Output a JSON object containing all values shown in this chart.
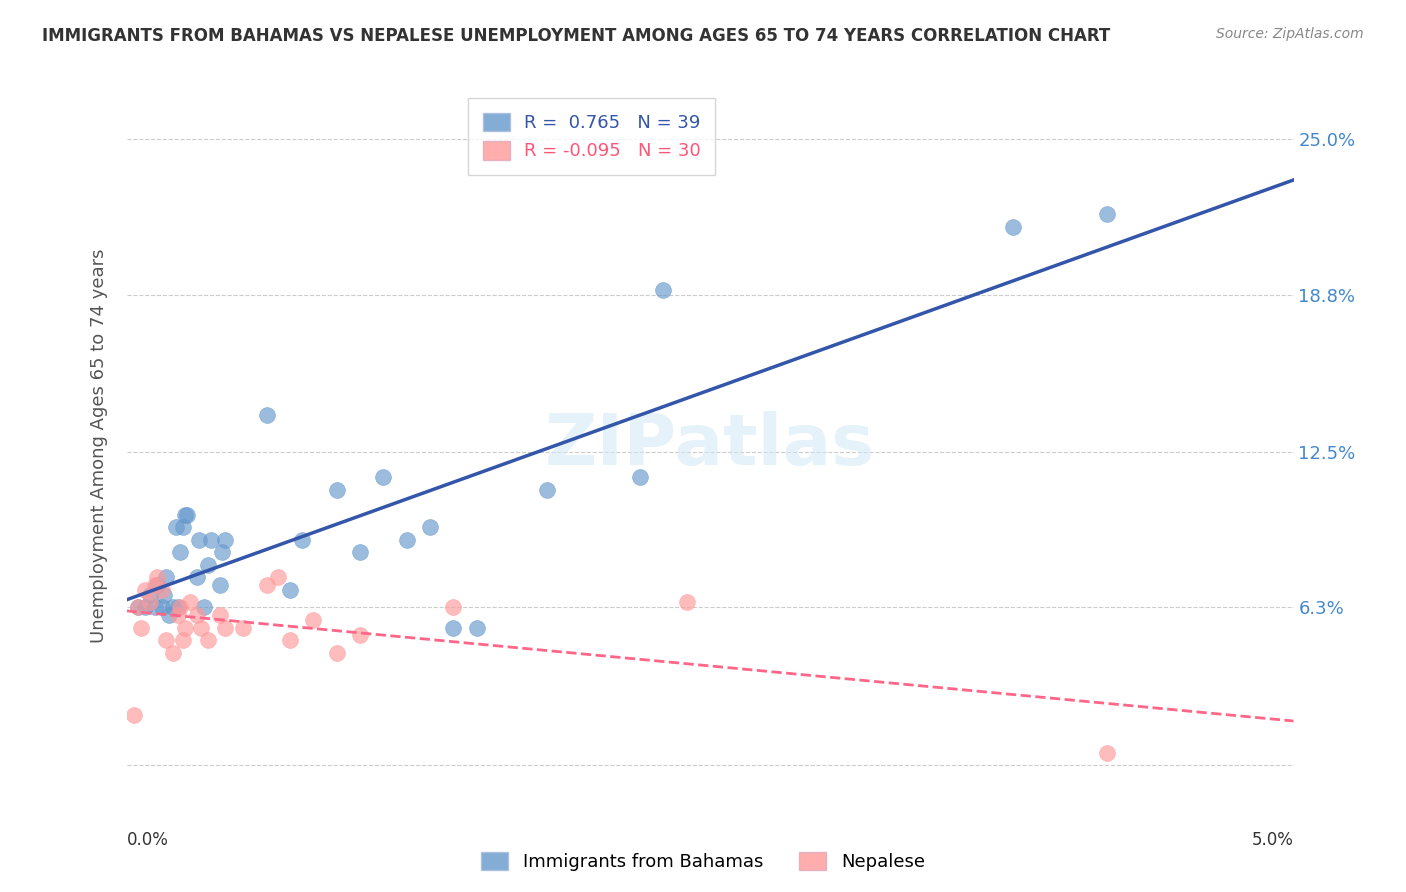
{
  "title": "IMMIGRANTS FROM BAHAMAS VS NEPALESE UNEMPLOYMENT AMONG AGES 65 TO 74 YEARS CORRELATION CHART",
  "source": "Source: ZipAtlas.com",
  "ylabel": "Unemployment Among Ages 65 to 74 years",
  "ytick_labels": [
    "",
    "6.3%",
    "12.5%",
    "18.8%",
    "25.0%"
  ],
  "ytick_values": [
    0,
    0.063,
    0.125,
    0.188,
    0.25
  ],
  "xlim": [
    0,
    0.05
  ],
  "ylim": [
    -0.015,
    0.27
  ],
  "watermark": "ZIPatlas",
  "legend_blue_label": "Immigrants from Bahamas",
  "legend_pink_label": "Nepalese",
  "R_blue": 0.765,
  "N_blue": 39,
  "R_pink": -0.095,
  "N_pink": 30,
  "blue_color": "#6699CC",
  "pink_color": "#FF9999",
  "blue_line_color": "#3355AA",
  "pink_line_color": "#FF6688",
  "blue_scatter_x": [
    0.0005,
    0.0008,
    0.001,
    0.0012,
    0.0013,
    0.0015,
    0.0016,
    0.0017,
    0.0018,
    0.002,
    0.0021,
    0.0022,
    0.0023,
    0.0024,
    0.0025,
    0.0026,
    0.003,
    0.0031,
    0.0033,
    0.0035,
    0.0036,
    0.004,
    0.0041,
    0.0042,
    0.006,
    0.007,
    0.0075,
    0.009,
    0.01,
    0.011,
    0.012,
    0.013,
    0.014,
    0.015,
    0.018,
    0.022,
    0.023,
    0.038,
    0.042
  ],
  "blue_scatter_y": [
    0.063,
    0.063,
    0.068,
    0.063,
    0.072,
    0.063,
    0.068,
    0.075,
    0.06,
    0.063,
    0.095,
    0.063,
    0.085,
    0.095,
    0.1,
    0.1,
    0.075,
    0.09,
    0.063,
    0.08,
    0.09,
    0.072,
    0.085,
    0.09,
    0.14,
    0.07,
    0.09,
    0.11,
    0.085,
    0.115,
    0.09,
    0.095,
    0.055,
    0.055,
    0.11,
    0.115,
    0.19,
    0.215,
    0.22
  ],
  "pink_scatter_x": [
    0.0003,
    0.0005,
    0.0006,
    0.0008,
    0.001,
    0.0012,
    0.0013,
    0.0015,
    0.0017,
    0.002,
    0.0022,
    0.0023,
    0.0024,
    0.0025,
    0.0027,
    0.003,
    0.0032,
    0.0035,
    0.004,
    0.0042,
    0.005,
    0.006,
    0.0065,
    0.007,
    0.008,
    0.009,
    0.01,
    0.014,
    0.024,
    0.042
  ],
  "pink_scatter_y": [
    0.02,
    0.063,
    0.055,
    0.07,
    0.065,
    0.072,
    0.075,
    0.07,
    0.05,
    0.045,
    0.06,
    0.063,
    0.05,
    0.055,
    0.065,
    0.06,
    0.055,
    0.05,
    0.06,
    0.055,
    0.055,
    0.072,
    0.075,
    0.05,
    0.058,
    0.045,
    0.052,
    0.063,
    0.065,
    0.005
  ]
}
